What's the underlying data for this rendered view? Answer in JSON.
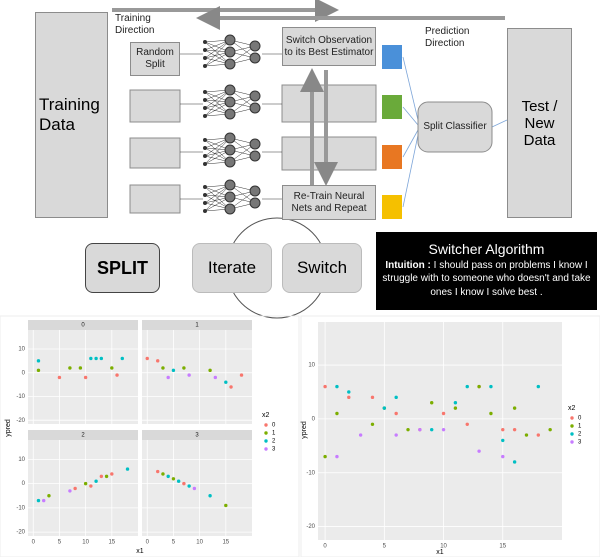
{
  "diagram": {
    "training_direction": "Training Direction",
    "prediction_direction": "Prediction Direction",
    "training_data": "Training Data",
    "random_split": "Random Split",
    "switch_observation": "Switch Observation to its Best Estimator",
    "retrain": "Re-Train Neural Nets and Repeat",
    "split_classifier": "Split Classifier",
    "test_data": "Test / New Data",
    "split": "SPLIT",
    "iterate": "Iterate",
    "switch": "Switch",
    "algorithm_title": "Switcher Algorithm",
    "intuition_label": "Intuition :",
    "intuition_text": "I should pass on problems I know I struggle with to someone who doesn't and take ones I know I solve best ."
  },
  "chart_data": [
    {
      "type": "scatter",
      "x_label": "x1",
      "y_label": "ypred",
      "legend_title": "x2",
      "groups": [
        {
          "name": "0",
          "color": "#f8766d"
        },
        {
          "name": "1",
          "color": "#7cae00"
        },
        {
          "name": "2",
          "color": "#00bfc4"
        },
        {
          "name": "3",
          "color": "#c77cff"
        }
      ],
      "xlim": [
        -1,
        20
      ],
      "ylim": [
        -21.6,
        18
      ],
      "xticks": [
        0,
        5,
        10,
        15
      ],
      "yticks": [
        -20,
        -10,
        0,
        10
      ],
      "grid": true,
      "facets": [
        {
          "title": "0",
          "series": [
            {
              "x": [
                5,
                10,
                16
              ],
              "values": [
                -2,
                -2,
                -1
              ]
            },
            {
              "x": [
                1,
                7,
                9,
                15
              ],
              "values": [
                1,
                2,
                2,
                2
              ]
            },
            {
              "x": [
                1,
                11,
                12,
                13,
                17
              ],
              "values": [
                5,
                6,
                6,
                6,
                6
              ]
            },
            {
              "x": [],
              "values": []
            }
          ]
        },
        {
          "title": "1",
          "series": [
            {
              "x": [
                0,
                2,
                16,
                18
              ],
              "values": [
                6,
                5,
                -6,
                -1
              ]
            },
            {
              "x": [
                3,
                7,
                12
              ],
              "values": [
                2,
                2,
                1
              ]
            },
            {
              "x": [
                5,
                15
              ],
              "values": [
                1,
                -4
              ]
            },
            {
              "x": [
                4,
                8,
                13
              ],
              "values": [
                -2,
                -1,
                -2
              ]
            }
          ]
        },
        {
          "title": "2",
          "series": [
            {
              "x": [
                8,
                11,
                13,
                15
              ],
              "values": [
                -2,
                -1,
                3,
                4
              ]
            },
            {
              "x": [
                3,
                10,
                14
              ],
              "values": [
                -5,
                0,
                3
              ]
            },
            {
              "x": [
                1,
                12,
                18
              ],
              "values": [
                -7,
                1,
                6
              ]
            },
            {
              "x": [
                2,
                7
              ],
              "values": [
                -7,
                -3
              ]
            }
          ]
        },
        {
          "title": "3",
          "series": [
            {
              "x": [
                2,
                7
              ],
              "values": [
                5,
                0
              ]
            },
            {
              "x": [
                3,
                5,
                15
              ],
              "values": [
                4,
                2,
                -9
              ]
            },
            {
              "x": [
                4,
                6,
                8,
                12
              ],
              "values": [
                3,
                1,
                -1,
                -5
              ]
            },
            {
              "x": [
                9
              ],
              "values": [
                -2
              ]
            }
          ]
        }
      ]
    },
    {
      "type": "scatter",
      "x_label": "x1",
      "y_label": "ypred",
      "legend_title": "x2",
      "xlim": [
        -0.6,
        20
      ],
      "ylim": [
        -22.5,
        18
      ],
      "xticks": [
        0,
        5,
        10,
        15
      ],
      "yticks": [
        -20,
        -10,
        0,
        10
      ],
      "grid": true,
      "series": [
        {
          "name": "0",
          "color": "#f8766d",
          "x": [
            0,
            2,
            4,
            6,
            8,
            10,
            12,
            13,
            15,
            16,
            18
          ],
          "values": [
            6,
            4,
            4,
            1,
            -2,
            1,
            -1,
            6,
            -2,
            -2,
            -3
          ]
        },
        {
          "name": "1",
          "color": "#7cae00",
          "x": [
            0,
            1,
            4,
            5,
            7,
            9,
            11,
            13,
            14,
            16,
            17,
            19
          ],
          "values": [
            -7,
            1,
            -1,
            2,
            -2,
            3,
            2,
            6,
            1,
            2,
            -3,
            -2
          ]
        },
        {
          "name": "2",
          "color": "#00bfc4",
          "x": [
            1,
            2,
            5,
            6,
            9,
            11,
            12,
            14,
            15,
            16,
            18
          ],
          "values": [
            6,
            5,
            2,
            4,
            -2,
            3,
            6,
            6,
            -4,
            -8,
            6
          ]
        },
        {
          "name": "3",
          "color": "#c77cff",
          "x": [
            1,
            3,
            6,
            8,
            10,
            13,
            15
          ],
          "values": [
            -7,
            -3,
            -3,
            -2,
            -2,
            -6,
            -7
          ]
        }
      ]
    }
  ]
}
